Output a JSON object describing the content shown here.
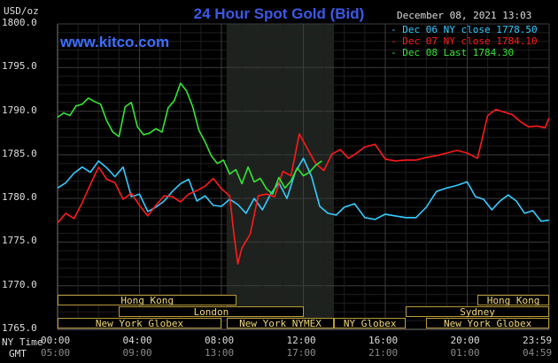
{
  "header": {
    "units": "USD/oz",
    "title": "24 Hour Spot Gold (Bid)",
    "date": "December 08, 2021 13:03",
    "site": "www.kitco.com"
  },
  "legend": [
    {
      "label": "Dec 06 NY close 1778.50",
      "color": "#33ccff"
    },
    {
      "label": "Dec 07 NY close 1784.10",
      "color": "#ff1a1a"
    },
    {
      "label": "Dec 08 Last 1784.30",
      "color": "#33e633"
    }
  ],
  "axis_labels": {
    "ny_time": "NY Time",
    "gmt": "GMT"
  },
  "sessions": [
    {
      "name": "Hong Kong",
      "row": 0,
      "start": 0,
      "end": 8.75
    },
    {
      "name": "Hong Kong",
      "row": 0,
      "start": 20.5,
      "end": 24
    },
    {
      "name": "London",
      "row": 1,
      "start": 3,
      "end": 12
    },
    {
      "name": "Sydney",
      "row": 1,
      "start": 17,
      "end": 24
    },
    {
      "name": "New York Globex",
      "row": 2,
      "start": 0,
      "end": 8
    },
    {
      "name": "New York NYMEX",
      "row": 2,
      "start": 8.25,
      "end": 13.5
    },
    {
      "name": "NY Globex",
      "row": 2,
      "start": 13.5,
      "end": 17
    },
    {
      "name": "New York Globex",
      "row": 2,
      "start": 18,
      "end": 24
    }
  ],
  "chart_data": {
    "type": "line",
    "title": "24 Hour Spot Gold (Bid)",
    "ylabel": "USD/oz",
    "ylim": [
      1765.0,
      1800.0
    ],
    "xlim": [
      0,
      24
    ],
    "y_ticks": [
      "1800.0",
      "1795.0",
      "1790.0",
      "1785.0",
      "1780.0",
      "1775.0",
      "1770.0",
      "1765.0"
    ],
    "y_tick_values": [
      1800,
      1795,
      1790,
      1785,
      1780,
      1775,
      1770,
      1765
    ],
    "x_ticks": [
      "00:00",
      "04:00",
      "08:00",
      "12:00",
      "16:00",
      "20:00",
      "23:59"
    ],
    "x_tick_values": [
      0,
      4,
      8,
      12,
      16,
      20,
      24
    ],
    "gmt_ticks": [
      "05:00",
      "09:00",
      "13:00",
      "17:00",
      "21:00",
      "01:00",
      "04:59"
    ],
    "shaded_region": [
      8.25,
      13.5
    ],
    "grid": true,
    "series": [
      {
        "name": "Dec 06 NY close 1778.50",
        "color": "#33ccff",
        "x": [
          0,
          0.4,
          0.8,
          1.2,
          1.6,
          2.0,
          2.4,
          2.8,
          3.2,
          3.6,
          4.0,
          4.4,
          4.8,
          5.2,
          5.6,
          6.0,
          6.4,
          6.8,
          7.2,
          7.6,
          8.0,
          8.4,
          8.8,
          9.2,
          9.6,
          10.0,
          10.4,
          10.8,
          11.2,
          11.6,
          12.0,
          12.4,
          12.8,
          13.2,
          13.6,
          14.0,
          14.5,
          15.0,
          15.5,
          16.0,
          16.5,
          17.0,
          17.5,
          18.0,
          18.5,
          19.0,
          19.5,
          20.0,
          20.4,
          20.8,
          21.2,
          21.6,
          22.0,
          22.4,
          22.8,
          23.2,
          23.6,
          23.99
        ],
        "y": [
          1781.2,
          1781.8,
          1782.9,
          1783.6,
          1783.0,
          1784.3,
          1783.5,
          1782.5,
          1783.6,
          1780.2,
          1780.5,
          1778.5,
          1779.0,
          1779.7,
          1780.8,
          1781.7,
          1782.2,
          1779.7,
          1780.3,
          1779.2,
          1779.1,
          1779.9,
          1779.3,
          1778.3,
          1780.0,
          1778.7,
          1780.5,
          1781.8,
          1780.0,
          1783.0,
          1784.6,
          1782.5,
          1779.1,
          1778.3,
          1778.1,
          1779.0,
          1779.4,
          1777.8,
          1777.6,
          1778.2,
          1778.0,
          1777.8,
          1777.8,
          1779.0,
          1780.8,
          1781.2,
          1781.5,
          1781.9,
          1780.2,
          1779.9,
          1778.7,
          1779.7,
          1780.4,
          1779.7,
          1778.3,
          1778.6,
          1777.4,
          1777.5
        ]
      },
      {
        "name": "Dec 07 NY close 1784.10",
        "color": "#ff1a1a",
        "x": [
          0,
          0.4,
          0.8,
          1.2,
          1.6,
          2.0,
          2.4,
          2.8,
          3.2,
          3.6,
          4.0,
          4.4,
          4.8,
          5.2,
          5.6,
          6.0,
          6.4,
          6.8,
          7.2,
          7.6,
          8.0,
          8.4,
          8.6,
          8.8,
          9.0,
          9.4,
          9.8,
          10.2,
          10.6,
          11.0,
          11.4,
          11.8,
          12.2,
          12.6,
          13.0,
          13.4,
          13.8,
          14.2,
          14.6,
          15.0,
          15.5,
          16.0,
          16.5,
          17.0,
          17.5,
          18.0,
          18.5,
          19.0,
          19.5,
          20.0,
          20.5,
          21.0,
          21.4,
          21.8,
          22.2,
          22.6,
          23.0,
          23.4,
          23.8,
          23.99
        ],
        "y": [
          1777.2,
          1778.3,
          1777.7,
          1779.5,
          1781.6,
          1783.6,
          1782.2,
          1781.8,
          1779.9,
          1780.6,
          1779.2,
          1778.0,
          1779.2,
          1780.3,
          1780.2,
          1779.6,
          1780.5,
          1780.9,
          1781.4,
          1782.3,
          1781.1,
          1780.3,
          1776.1,
          1772.5,
          1774.3,
          1775.9,
          1780.3,
          1780.5,
          1780.2,
          1783.1,
          1782.6,
          1787.4,
          1785.7,
          1784.0,
          1783.2,
          1785.1,
          1785.6,
          1784.6,
          1785.2,
          1785.9,
          1786.2,
          1784.5,
          1784.3,
          1784.4,
          1784.4,
          1784.7,
          1784.9,
          1785.2,
          1785.5,
          1785.2,
          1784.6,
          1789.5,
          1790.2,
          1789.9,
          1789.6,
          1788.8,
          1788.2,
          1788.3,
          1788.1,
          1789.2
        ]
      },
      {
        "name": "Dec 08 Last 1784.30",
        "color": "#33e633",
        "x": [
          0,
          0.3,
          0.6,
          0.9,
          1.2,
          1.5,
          1.8,
          2.1,
          2.4,
          2.7,
          3.0,
          3.3,
          3.6,
          3.9,
          4.2,
          4.5,
          4.8,
          5.1,
          5.4,
          5.7,
          6.0,
          6.3,
          6.6,
          6.9,
          7.2,
          7.5,
          7.8,
          8.1,
          8.4,
          8.7,
          9.0,
          9.3,
          9.6,
          9.9,
          10.2,
          10.5,
          10.8,
          11.1,
          11.4,
          11.7,
          12.0,
          12.3,
          12.6,
          12.9
        ],
        "y": [
          1789.3,
          1789.8,
          1789.5,
          1790.6,
          1790.8,
          1791.5,
          1791.1,
          1790.8,
          1788.9,
          1787.6,
          1787.1,
          1790.5,
          1791.0,
          1788.2,
          1787.3,
          1787.5,
          1788.0,
          1787.6,
          1790.4,
          1791.2,
          1793.2,
          1792.3,
          1790.5,
          1787.8,
          1786.5,
          1784.9,
          1784.0,
          1784.4,
          1782.8,
          1783.3,
          1781.7,
          1783.6,
          1781.9,
          1782.3,
          1781.1,
          1780.5,
          1782.4,
          1781.2,
          1782.0,
          1783.5,
          1782.6,
          1783.0,
          1783.8,
          1784.3
        ]
      }
    ]
  }
}
